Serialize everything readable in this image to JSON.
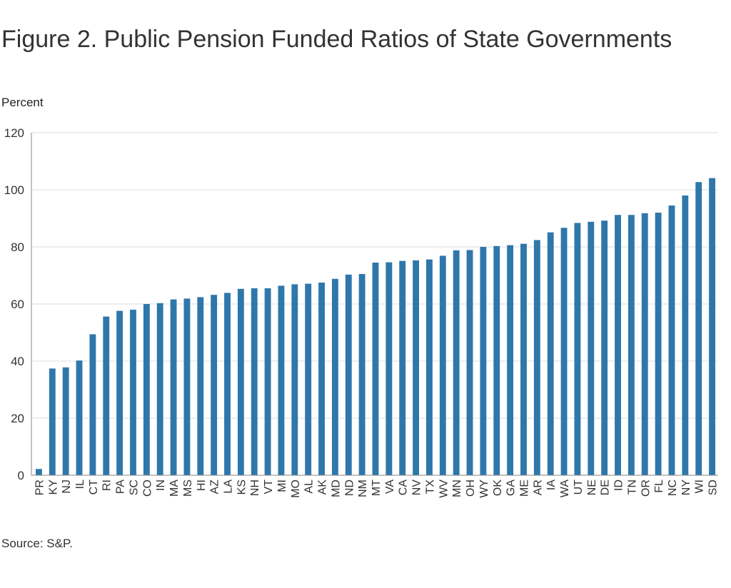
{
  "title": "Figure 2. Public Pension Funded Ratios of State Governments",
  "ylabel": "Percent",
  "source": "Source: S&P.",
  "colors": {
    "bar": "#2f77aa",
    "grid": "#dddddd",
    "axis": "#888888",
    "text": "#333333"
  },
  "chart_data": {
    "type": "bar",
    "categories": [
      "PR",
      "KY",
      "NJ",
      "IL",
      "CT",
      "RI",
      "PA",
      "SC",
      "CO",
      "IN",
      "MA",
      "MS",
      "HI",
      "AZ",
      "LA",
      "KS",
      "NH",
      "VT",
      "MI",
      "MO",
      "AL",
      "AK",
      "MD",
      "ND",
      "NM",
      "MT",
      "VA",
      "CA",
      "NV",
      "TX",
      "WV",
      "MN",
      "OH",
      "WY",
      "OK",
      "GA",
      "ME",
      "AR",
      "IA",
      "WA",
      "UT",
      "NE",
      "DE",
      "ID",
      "TN",
      "OR",
      "FL",
      "NC",
      "NY",
      "WI",
      "SD"
    ],
    "values": [
      2.2,
      37.4,
      37.8,
      40.2,
      49.4,
      55.6,
      57.6,
      58.0,
      60.0,
      60.3,
      61.6,
      61.9,
      62.4,
      63.2,
      63.9,
      65.3,
      65.5,
      65.5,
      66.4,
      66.9,
      67.1,
      67.5,
      68.8,
      70.3,
      70.5,
      74.5,
      74.6,
      75.1,
      75.3,
      75.6,
      76.9,
      78.8,
      78.9,
      80.0,
      80.3,
      80.6,
      81.1,
      82.4,
      85.1,
      86.7,
      88.4,
      88.8,
      89.2,
      91.2,
      91.2,
      91.8,
      92.0,
      94.5,
      98.0,
      102.7,
      104.1
    ],
    "yticks": [
      0,
      20,
      40,
      60,
      80,
      100,
      120
    ],
    "ylim": [
      0,
      120
    ],
    "ylabel": "Percent",
    "xlabel": "",
    "grid": true,
    "legend": "none"
  }
}
